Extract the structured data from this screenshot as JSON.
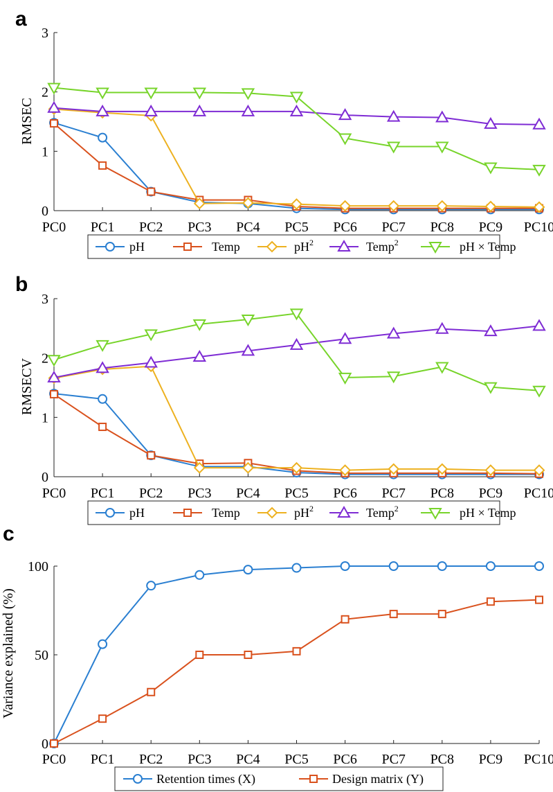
{
  "colors": {
    "pH": "#2a7fd1",
    "Temp": "#d9511d",
    "pH2": "#edb120",
    "Temp2": "#7e2bd4",
    "pHxTemp": "#77d42a",
    "axis": "#222222",
    "text": "#000000"
  },
  "chart_data": [
    {
      "type": "line",
      "panel_letter": "a",
      "ylabel": "RMSEC",
      "xlabel": "",
      "categories": [
        "PC0",
        "PC1",
        "PC2",
        "PC3",
        "PC4",
        "PC5",
        "PC6",
        "PC7",
        "PC8",
        "PC9",
        "PC10"
      ],
      "ylim": [
        0,
        3
      ],
      "yticks": [
        "0",
        "1",
        "2",
        "3"
      ],
      "legend_position": "bottom",
      "series": [
        {
          "key": "pH",
          "name": "pH",
          "sup": "",
          "marker": "circle",
          "values": [
            1.48,
            1.23,
            0.32,
            0.14,
            0.12,
            0.04,
            0.02,
            0.02,
            0.02,
            0.02,
            0.02
          ]
        },
        {
          "key": "Temp",
          "name": "Temp",
          "sup": "",
          "marker": "square",
          "values": [
            1.47,
            0.76,
            0.32,
            0.18,
            0.18,
            0.07,
            0.04,
            0.04,
            0.04,
            0.04,
            0.04
          ]
        },
        {
          "key": "pH2",
          "name": "pH",
          "sup": "2",
          "marker": "diamond",
          "values": [
            1.71,
            1.65,
            1.6,
            0.12,
            0.13,
            0.11,
            0.08,
            0.08,
            0.08,
            0.07,
            0.06
          ]
        },
        {
          "key": "Temp2",
          "name": "Temp",
          "sup": "2",
          "marker": "triangle-up",
          "values": [
            1.73,
            1.67,
            1.67,
            1.67,
            1.67,
            1.67,
            1.61,
            1.58,
            1.57,
            1.46,
            1.45
          ]
        },
        {
          "key": "pHxTemp",
          "name": "pH × Temp",
          "sup": "",
          "marker": "triangle-down",
          "values": [
            2.07,
            1.99,
            1.99,
            1.99,
            1.98,
            1.92,
            1.22,
            1.08,
            1.08,
            0.73,
            0.69
          ]
        }
      ]
    },
    {
      "type": "line",
      "panel_letter": "b",
      "ylabel": "RMSECV",
      "xlabel": "",
      "categories": [
        "PC0",
        "PC1",
        "PC2",
        "PC3",
        "PC4",
        "PC5",
        "PC6",
        "PC7",
        "PC8",
        "PC9",
        "PC10"
      ],
      "ylim": [
        0,
        3
      ],
      "yticks": [
        "0",
        "1",
        "2",
        "3"
      ],
      "legend_position": "bottom",
      "series": [
        {
          "key": "pH",
          "name": "pH",
          "sup": "",
          "marker": "circle",
          "values": [
            1.4,
            1.31,
            0.36,
            0.17,
            0.17,
            0.07,
            0.04,
            0.04,
            0.04,
            0.04,
            0.04
          ]
        },
        {
          "key": "Temp",
          "name": "Temp",
          "sup": "",
          "marker": "square",
          "values": [
            1.39,
            0.84,
            0.36,
            0.22,
            0.23,
            0.1,
            0.06,
            0.06,
            0.06,
            0.06,
            0.05
          ]
        },
        {
          "key": "pH2",
          "name": "pH",
          "sup": "2",
          "marker": "diamond",
          "values": [
            1.66,
            1.81,
            1.86,
            0.15,
            0.15,
            0.15,
            0.11,
            0.13,
            0.13,
            0.11,
            0.11
          ]
        },
        {
          "key": "Temp2",
          "name": "Temp",
          "sup": "2",
          "marker": "triangle-up",
          "values": [
            1.67,
            1.83,
            1.92,
            2.02,
            2.12,
            2.22,
            2.32,
            2.41,
            2.49,
            2.45,
            2.54
          ]
        },
        {
          "key": "pHxTemp",
          "name": "pH × Temp",
          "sup": "",
          "marker": "triangle-down",
          "values": [
            1.97,
            2.22,
            2.4,
            2.57,
            2.65,
            2.75,
            1.67,
            1.69,
            1.85,
            1.51,
            1.45
          ]
        }
      ]
    },
    {
      "type": "line",
      "panel_letter": "c",
      "ylabel": "Variance explained (%)",
      "xlabel": "",
      "categories": [
        "PC0",
        "PC1",
        "PC2",
        "PC3",
        "PC4",
        "PC5",
        "PC6",
        "PC7",
        "PC8",
        "PC9",
        "PC10"
      ],
      "ylim": [
        0,
        100
      ],
      "yticks": [
        "0",
        "50",
        "100"
      ],
      "legend_position": "bottom",
      "series": [
        {
          "key": "pH",
          "name": "Retention times (X)",
          "sup": "",
          "marker": "circle",
          "values": [
            0,
            56,
            89,
            95,
            98,
            99,
            100,
            100,
            100,
            100,
            100
          ]
        },
        {
          "key": "Temp",
          "name": "Design matrix (Y)",
          "sup": "",
          "marker": "square",
          "values": [
            0,
            14,
            29,
            50,
            50,
            52,
            70,
            73,
            73,
            80,
            81
          ]
        }
      ]
    }
  ]
}
